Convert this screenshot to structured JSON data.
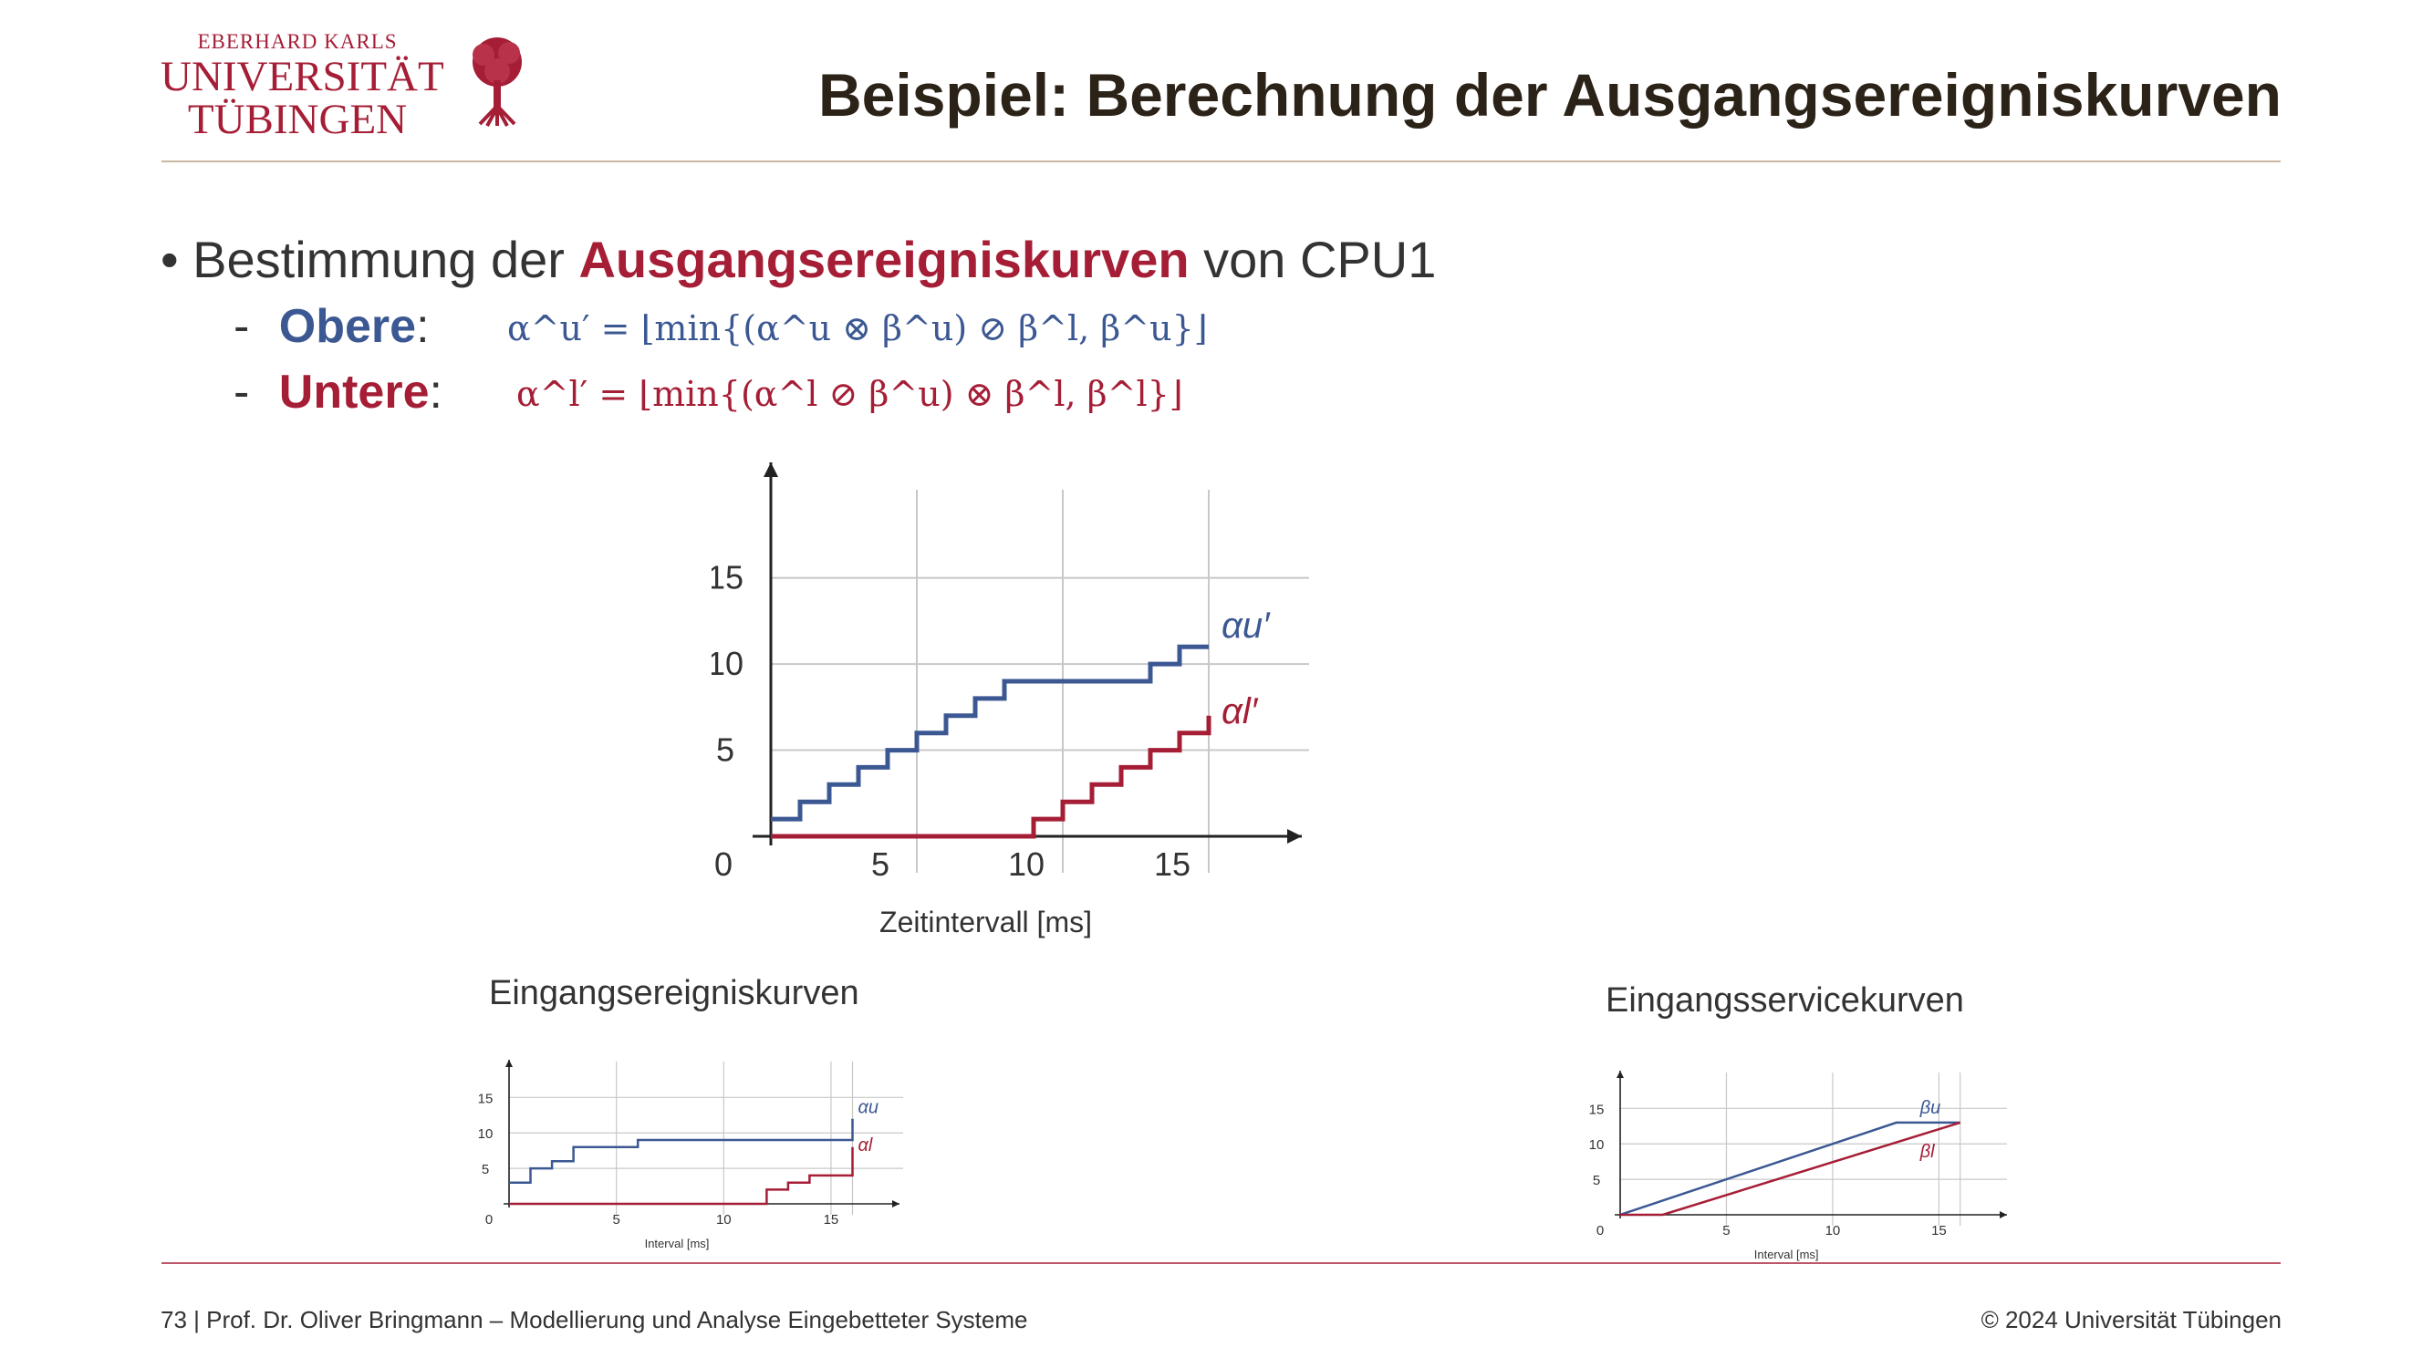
{
  "logo": {
    "line1": "EBERHARD KARLS",
    "line2": "UNIVERSITÄT",
    "line3": "TÜBINGEN",
    "icon": "oak-tree-icon"
  },
  "title": "Beispiel: Berechnung der Ausgangsereigniskurven",
  "bullet": {
    "prefix": "Bestimmung der ",
    "highlight": "Ausgangsereigniskurven",
    "suffix": " von CPU1"
  },
  "obere": {
    "dash": "-",
    "label": "Obere",
    "colon": ":",
    "formula": "α^u′ = ⌊min{(α^u ⊗ β^u) ⊘ β^l, β^u}⌋"
  },
  "untere": {
    "dash": "-",
    "label": "Untere",
    "colon": ":",
    "formula": "α^l′ = ⌊min{(α^l ⊘ β^u) ⊗ β^l, β^l}⌋"
  },
  "colors": {
    "blue": "#3c5893",
    "red": "#a51e36",
    "title": "#2b2218",
    "rule": "#c9b6a0"
  },
  "chart_data": [
    {
      "type": "line",
      "xlabel": "Zeitintervall [ms]",
      "ylabel": "",
      "xlim": [
        0,
        16
      ],
      "ylim": [
        0,
        18
      ],
      "xticks": [
        0,
        5,
        10,
        15
      ],
      "yticks": [
        5,
        10,
        15
      ],
      "grid": true,
      "series": [
        {
          "name": "α^u′",
          "color": "#3c5893",
          "step": true,
          "x": [
            0,
            1,
            2,
            3,
            4,
            5,
            6,
            7,
            8,
            13,
            14,
            15
          ],
          "y": [
            1,
            2,
            3,
            4,
            5,
            6,
            7,
            8,
            9,
            10,
            11,
            11
          ]
        },
        {
          "name": "α^l′",
          "color": "#a51e36",
          "step": true,
          "x": [
            0,
            9,
            10,
            11,
            12,
            13,
            14,
            15,
            15
          ],
          "y": [
            0,
            1,
            2,
            3,
            4,
            5,
            6,
            6,
            7
          ]
        }
      ]
    },
    {
      "type": "line",
      "title": "Eingangsereigniskurven",
      "xlabel": "Interval [ms]",
      "xlim": [
        0,
        17
      ],
      "ylim": [
        0,
        18
      ],
      "xticks": [
        0,
        5,
        10,
        15
      ],
      "yticks": [
        5,
        10,
        15
      ],
      "grid": true,
      "series": [
        {
          "name": "α^u",
          "color": "#3c5893",
          "step": true,
          "x": [
            0,
            1,
            2,
            3,
            6,
            16,
            16
          ],
          "y": [
            3,
            5,
            6,
            8,
            9,
            9,
            12
          ]
        },
        {
          "name": "α^l",
          "color": "#a51e36",
          "step": true,
          "x": [
            0,
            9,
            12,
            13,
            14,
            16,
            16
          ],
          "y": [
            0,
            0,
            2,
            3,
            4,
            6,
            8
          ]
        }
      ]
    },
    {
      "type": "line",
      "title": "Eingangsservicekurven",
      "xlabel": "Interval [ms]",
      "xlim": [
        0,
        17
      ],
      "ylim": [
        0,
        18
      ],
      "xticks": [
        0,
        5,
        10,
        15
      ],
      "yticks": [
        5,
        10,
        15
      ],
      "grid": true,
      "series": [
        {
          "name": "β^u",
          "color": "#3c5893",
          "x": [
            0,
            13,
            16
          ],
          "y": [
            0,
            13,
            13
          ]
        },
        {
          "name": "β^l",
          "color": "#a51e36",
          "x": [
            0,
            2,
            16
          ],
          "y": [
            0,
            0,
            13
          ]
        }
      ]
    }
  ],
  "footer": {
    "left": "73 | Prof. Dr. Oliver Bringmann – Modellierung und Analyse Eingebetteter Systeme",
    "right": "© 2024 Universität Tübingen"
  }
}
